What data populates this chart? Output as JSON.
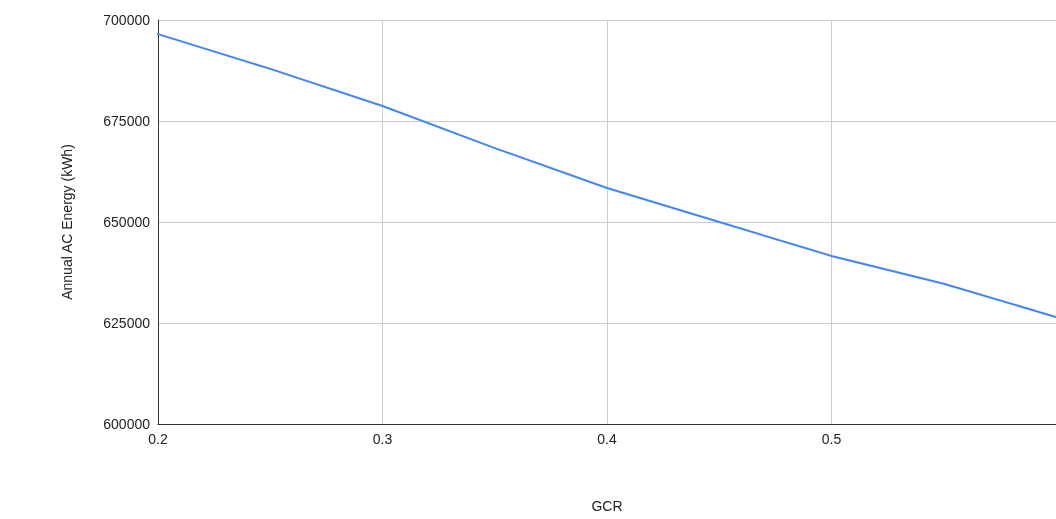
{
  "chart_data": {
    "type": "line",
    "xlabel": "GCR",
    "ylabel": "Annual AC Energy (kWh)",
    "x": [
      0.2,
      0.25,
      0.3,
      0.35,
      0.4,
      0.45,
      0.5,
      0.55,
      0.6
    ],
    "series": [
      {
        "color": "#4285f4",
        "values": [
          696500,
          687900,
          678700,
          668300,
          658400,
          650000,
          641600,
          634700,
          626500
        ]
      }
    ],
    "xlim": [
      0.2,
      0.6
    ],
    "xticks": [
      0.2,
      0.3,
      0.4,
      0.5
    ],
    "ylim": [
      600000,
      700000
    ],
    "yticks": [
      600000,
      625000,
      650000,
      675000,
      700000
    ],
    "grid": true,
    "marker": "none",
    "line_style": "solid"
  }
}
